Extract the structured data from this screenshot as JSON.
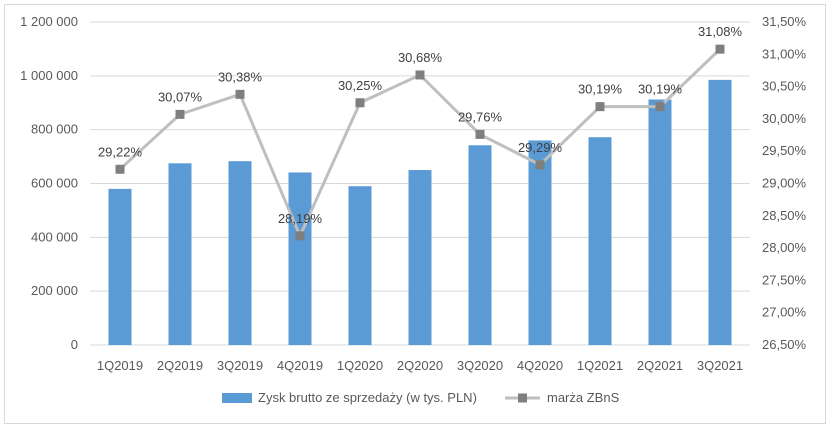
{
  "chart_data": {
    "type": "bar",
    "categories": [
      "1Q2019",
      "2Q2019",
      "3Q2019",
      "4Q2019",
      "1Q2020",
      "2Q2020",
      "3Q2020",
      "4Q2020",
      "1Q2021",
      "2Q2021",
      "3Q2021"
    ],
    "series": [
      {
        "name": "Zysk brutto ze sprzedaży (w tys. PLN)",
        "type": "bar",
        "axis": "left",
        "color": "#5b9bd5",
        "values": [
          580000,
          675000,
          683000,
          641000,
          590000,
          650000,
          742000,
          760000,
          772000,
          912000,
          985000
        ]
      },
      {
        "name": "marża ZBnS",
        "type": "line",
        "axis": "right",
        "color": "#bfbfbf",
        "marker_color": "#7f7f7f",
        "values": [
          29.22,
          30.07,
          30.38,
          28.19,
          30.25,
          30.68,
          29.76,
          29.29,
          30.19,
          30.19,
          31.08
        ],
        "labels": [
          "29,22%",
          "30,07%",
          "30,38%",
          "28,19%",
          "30,25%",
          "30,68%",
          "29,76%",
          "29,29%",
          "30,19%",
          "30,19%",
          "31,08%"
        ]
      }
    ],
    "left_axis": {
      "ylim": [
        0,
        1200000
      ],
      "ticks": [
        0,
        200000,
        400000,
        600000,
        800000,
        1000000,
        1200000
      ],
      "tick_labels": [
        "0",
        "200 000",
        "400 000",
        "600 000",
        "800 000",
        "1 000 000",
        "1 200 000"
      ]
    },
    "right_axis": {
      "ylim": [
        26.5,
        31.5
      ],
      "ticks": [
        26.5,
        27.0,
        27.5,
        28.0,
        28.5,
        29.0,
        29.5,
        30.0,
        30.5,
        31.0,
        31.5
      ],
      "tick_labels": [
        "26,50%",
        "27,00%",
        "27,50%",
        "28,00%",
        "28,50%",
        "29,00%",
        "29,50%",
        "30,00%",
        "30,50%",
        "31,00%",
        "31,50%"
      ]
    },
    "grid": true,
    "legend_position": "bottom",
    "gridline_color": "#d9d9d9"
  }
}
